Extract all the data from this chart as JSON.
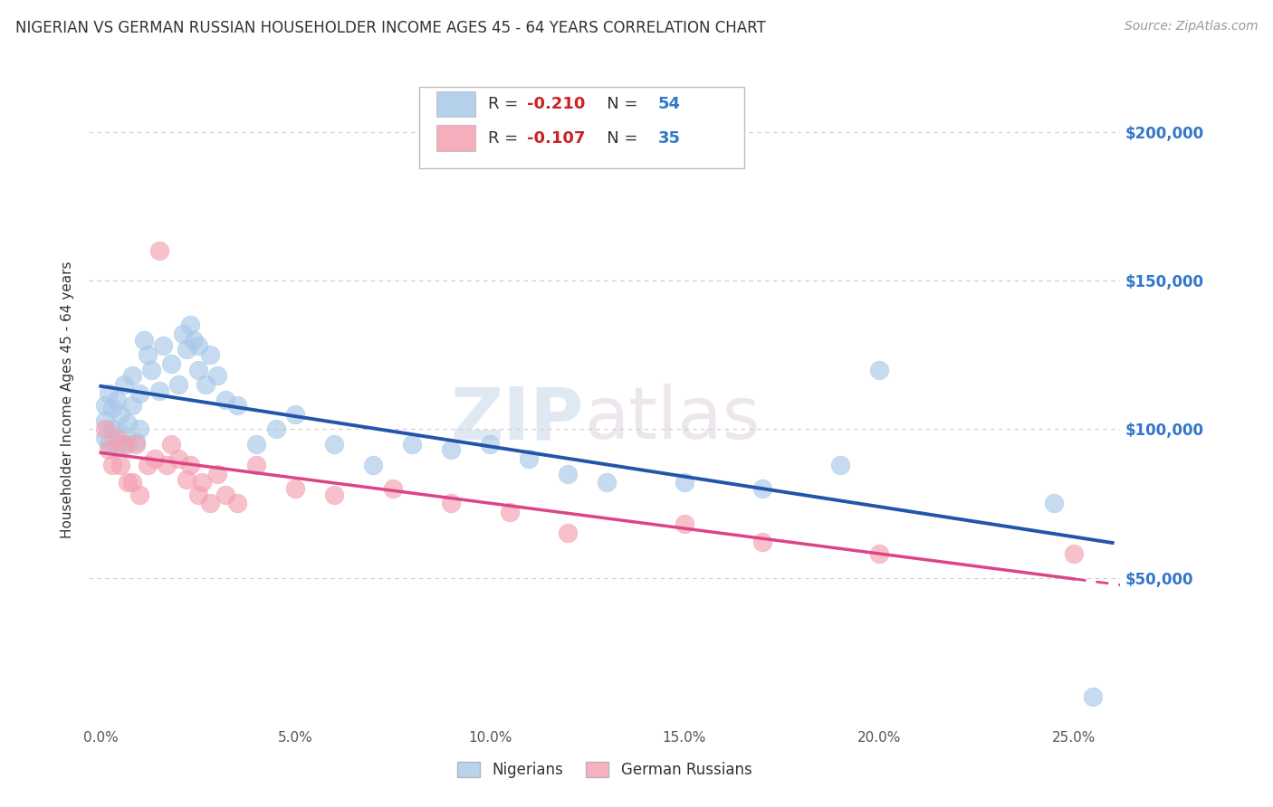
{
  "title": "NIGERIAN VS GERMAN RUSSIAN HOUSEHOLDER INCOME AGES 45 - 64 YEARS CORRELATION CHART",
  "source": "Source: ZipAtlas.com",
  "ylabel": "Householder Income Ages 45 - 64 years",
  "xlabel_ticks": [
    "0.0%",
    "5.0%",
    "10.0%",
    "15.0%",
    "20.0%",
    "25.0%"
  ],
  "xlabel_vals": [
    0.0,
    0.05,
    0.1,
    0.15,
    0.2,
    0.25
  ],
  "ylabel_ticks": [
    "$200,000",
    "$150,000",
    "$100,000",
    "$50,000"
  ],
  "ylabel_vals": [
    200000,
    150000,
    100000,
    50000
  ],
  "ylim": [
    0,
    220000
  ],
  "xlim": [
    -0.003,
    0.262
  ],
  "nigerian_R": "-0.210",
  "nigerian_N": "54",
  "german_russian_R": "-0.107",
  "german_russian_N": "35",
  "nigerian_color": "#a8c8e8",
  "german_russian_color": "#f4a0b0",
  "nigerian_line_color": "#2255aa",
  "german_russian_line_color": "#dd4488",
  "background_color": "#ffffff",
  "grid_color": "#cccccc",
  "watermark_zip": "ZIP",
  "watermark_atlas": "atlas",
  "nigerian_x": [
    0.001,
    0.001,
    0.001,
    0.002,
    0.002,
    0.003,
    0.003,
    0.004,
    0.004,
    0.005,
    0.005,
    0.006,
    0.007,
    0.007,
    0.008,
    0.008,
    0.009,
    0.01,
    0.01,
    0.011,
    0.012,
    0.013,
    0.015,
    0.016,
    0.018,
    0.02,
    0.021,
    0.022,
    0.023,
    0.024,
    0.025,
    0.025,
    0.027,
    0.028,
    0.03,
    0.032,
    0.035,
    0.04,
    0.045,
    0.05,
    0.06,
    0.07,
    0.08,
    0.09,
    0.1,
    0.11,
    0.12,
    0.13,
    0.15,
    0.17,
    0.19,
    0.2,
    0.245,
    0.255
  ],
  "nigerian_y": [
    108000,
    103000,
    97000,
    112000,
    95000,
    107000,
    100000,
    110000,
    94000,
    105000,
    99000,
    115000,
    102000,
    95000,
    118000,
    108000,
    96000,
    112000,
    100000,
    130000,
    125000,
    120000,
    113000,
    128000,
    122000,
    115000,
    132000,
    127000,
    135000,
    130000,
    128000,
    120000,
    115000,
    125000,
    118000,
    110000,
    108000,
    95000,
    100000,
    105000,
    95000,
    88000,
    95000,
    93000,
    95000,
    90000,
    85000,
    82000,
    82000,
    80000,
    88000,
    120000,
    75000,
    10000
  ],
  "german_russian_x": [
    0.001,
    0.002,
    0.003,
    0.004,
    0.005,
    0.006,
    0.007,
    0.008,
    0.009,
    0.01,
    0.012,
    0.014,
    0.015,
    0.017,
    0.018,
    0.02,
    0.022,
    0.023,
    0.025,
    0.026,
    0.028,
    0.03,
    0.032,
    0.035,
    0.04,
    0.05,
    0.06,
    0.075,
    0.09,
    0.105,
    0.12,
    0.15,
    0.17,
    0.2,
    0.25
  ],
  "german_russian_y": [
    100000,
    93000,
    88000,
    97000,
    88000,
    95000,
    82000,
    82000,
    95000,
    78000,
    88000,
    90000,
    160000,
    88000,
    95000,
    90000,
    83000,
    88000,
    78000,
    82000,
    75000,
    85000,
    78000,
    75000,
    88000,
    80000,
    78000,
    80000,
    75000,
    72000,
    65000,
    68000,
    62000,
    58000,
    58000
  ],
  "legend_label_nig": "R =",
  "legend_label_gr": "R =",
  "title_fontsize": 12,
  "source_fontsize": 10,
  "tick_fontsize": 11,
  "legend_fontsize": 13
}
